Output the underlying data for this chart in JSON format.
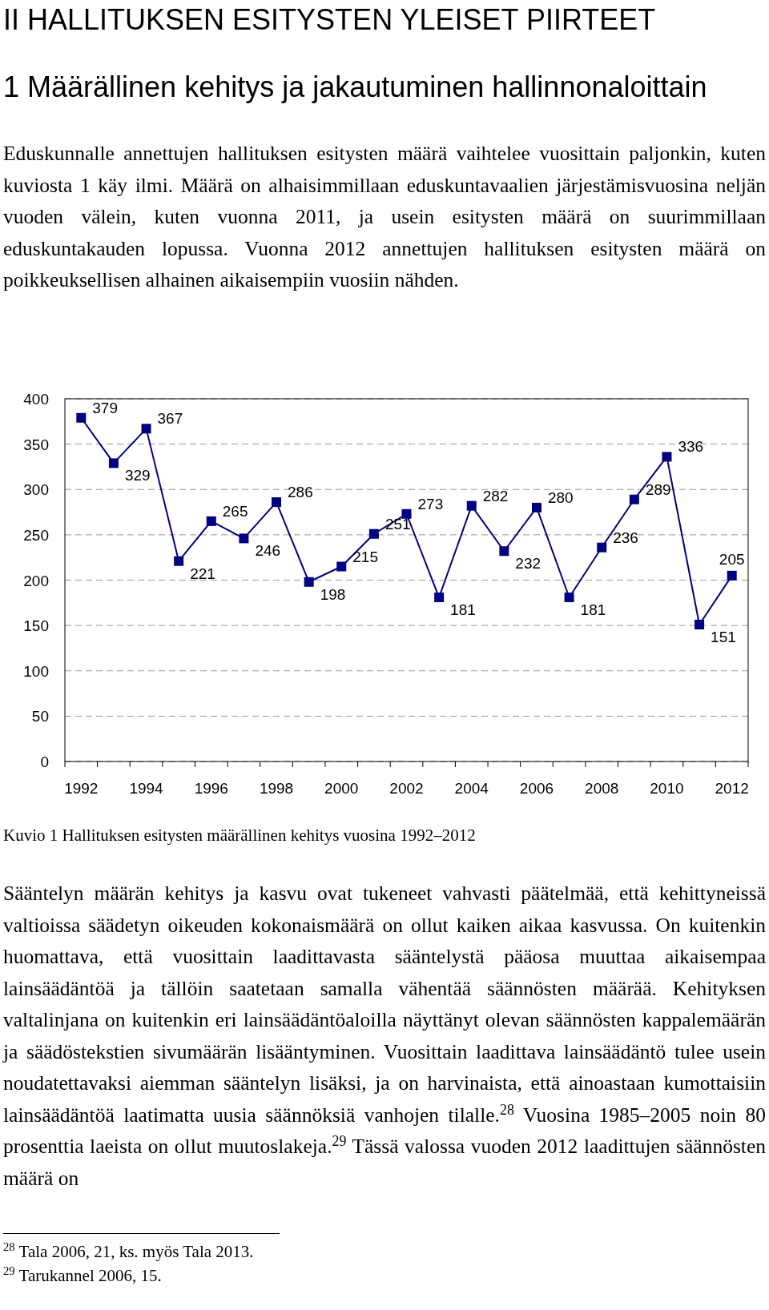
{
  "chart_data": {
    "type": "line",
    "title": "II HALLITUKSEN ESITYSTEN YLEISET PIIRTEET",
    "subtitle": "1 Määrällinen kehitys ja jakautuminen hallinnonaloittain",
    "categories": [
      "1992",
      null,
      "1994",
      null,
      "1996",
      null,
      "1998",
      null,
      "2000",
      null,
      "2002",
      null,
      "2004",
      null,
      "2006",
      null,
      "2008",
      null,
      "2010",
      null,
      "2012"
    ],
    "series": [
      {
        "color": "#000080",
        "values": [
          379,
          329,
          367,
          221,
          265,
          246,
          286,
          198,
          215,
          251,
          273,
          181,
          282,
          232,
          280,
          181,
          236,
          289,
          336,
          151,
          205
        ]
      }
    ],
    "ylim": [
      0,
      400
    ],
    "yticks": [
      0,
      50,
      100,
      150,
      200,
      250,
      300,
      350,
      400
    ],
    "grid": "y",
    "marker": "square",
    "line_style": "solid",
    "data_labels": true,
    "annotations": [
      "Eduskunnalle annettujen hallituksen esitysten määrä vaihtelee vuosittain paljonkin, kuten kuviosta 1 käy ilmi. Määrä on alhaisimmillaan eduskuntavaalien järjestämisvuosina neljän vuoden välein, kuten vuonna 2011, ja usein esitysten määrä on suurimmillaan eduskuntakauden lopussa. Vuonna 2012 annettujen hallituksen esitysten määrä on poikkeuksellisen alhainen aikaisempiin vuosiin nähden.",
      "Kuvio 1 Hallituksen esitysten määrällinen kehitys vuosina 1992–2012",
      "Sääntelyn määrän kehitys ja kasvu ovat tukeneet vahvasti päätelmää, että kehittyneissä valtioissa säädetyn oikeuden kokonaismäärä on ollut kaiken aikaa kasvussa. On kuitenkin huomattava, että vuosittain laadittavasta sääntelystä pääosa muuttaa aikaisempaa lainsäädäntöä ja tällöin saatetaan samalla vähentää säännösten määrää. Kehityksen valtalinjana on kuitenkin eri lainsäädäntöaloilla näyttänyt olevan säännösten kappalemäärän ja säädöstekstien sivumäärän lisääntyminen. Vuosittain laadittava lainsäädäntö tulee usein noudatettavaksi aiemman sääntelyn lisäksi, ja on harvinaista, että ainoastaan kumottaisiin lainsäädäntöä laatimatta uusia säännöksiä vanhojen tilalle.$^{28}$ Vuosina 1985–2005 noin 80 prosenttia laeista on ollut muutoslakeja.$^{29}$ Tässä valossa vuoden 2012 laadittujen säännösten määrä on",
      "$^{28}$ Tala 2006, 21, ks. myös Tala 2013.",
      "$^{29}$ Tarukannel 2006, 15."
    ]
  }
}
